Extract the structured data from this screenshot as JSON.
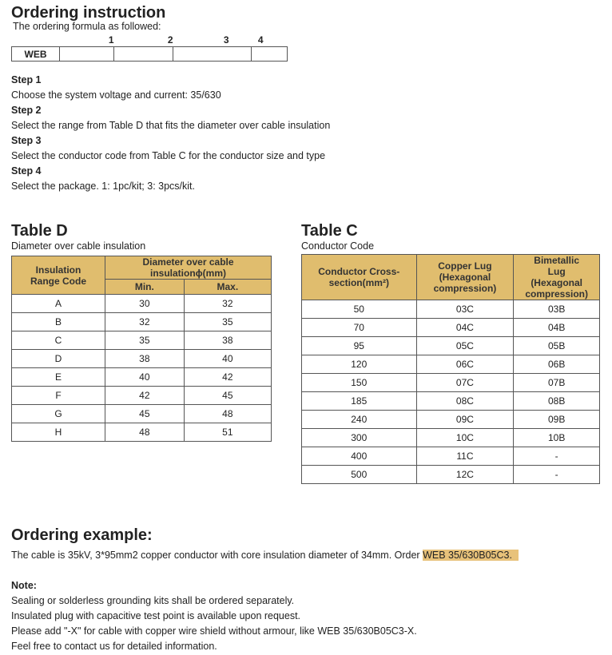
{
  "title": "Ordering instruction",
  "formula_caption": "The ordering formula as followed:",
  "formula": {
    "numbers": [
      "1",
      "2",
      "3",
      "4"
    ],
    "prefix": "WEB"
  },
  "steps": [
    {
      "label": "Step 1",
      "text": "Choose the system voltage and current: 35/630"
    },
    {
      "label": "Step 2",
      "text": "Select the range from Table D that fits the diameter over cable insulation"
    },
    {
      "label": "Step 3",
      "text": "Select the conductor code from Table C for the conductor size and type"
    },
    {
      "label": "Step 4",
      "text": "Select the package. 1: 1pc/kit; 3: 3pcs/kit."
    }
  ],
  "table_d": {
    "title": "Table D",
    "subtitle": "Diameter over cable insulation",
    "headers": {
      "code": "Insulation Range Code",
      "diameter": "Diameter over cable insulationϕ(mm)",
      "min": "Min.",
      "max": "Max."
    },
    "rows": [
      [
        "A",
        "30",
        "32"
      ],
      [
        "B",
        "32",
        "35"
      ],
      [
        "C",
        "35",
        "38"
      ],
      [
        "D",
        "38",
        "40"
      ],
      [
        "E",
        "40",
        "42"
      ],
      [
        "F",
        "42",
        "45"
      ],
      [
        "G",
        "45",
        "48"
      ],
      [
        "H",
        "48",
        "51"
      ]
    ]
  },
  "table_c": {
    "title": "Table C",
    "subtitle": "Conductor Code",
    "headers": {
      "conductor": "Conductor Cross-section(mm²)",
      "copper": "Copper Lug (Hexagonal compression)",
      "bimetallic": "Bimetallic Lug (Hexagonal compression)"
    },
    "rows": [
      [
        "50",
        "03C",
        "03B"
      ],
      [
        "70",
        "04C",
        "04B"
      ],
      [
        "95",
        "05C",
        "05B"
      ],
      [
        "120",
        "06C",
        "06B"
      ],
      [
        "150",
        "07C",
        "07B"
      ],
      [
        "185",
        "08C",
        "08B"
      ],
      [
        "240",
        "09C",
        "09B"
      ],
      [
        "300",
        "10C",
        "10B"
      ],
      [
        "400",
        "11C",
        "-"
      ],
      [
        "500",
        "12C",
        "-"
      ]
    ]
  },
  "example": {
    "title": "Ordering example:",
    "text": "The cable is 35kV, 3*95mm2 copper conductor with core insulation diameter of 34mm. Order ",
    "highlight": "WEB 35/630B05C3."
  },
  "note": {
    "title": "Note:",
    "lines": [
      "Sealing or solderless grounding kits shall be ordered separately.",
      "Insulated plug with capacitive test point is available upon request.",
      "Please add \"-X\" for cable with copper wire shield without armour, like WEB 35/630B05C3-X.",
      "Feel free to contact us for detailed information."
    ]
  },
  "colors": {
    "header": "#e0bd6e",
    "highlight": "#e8c27a"
  }
}
